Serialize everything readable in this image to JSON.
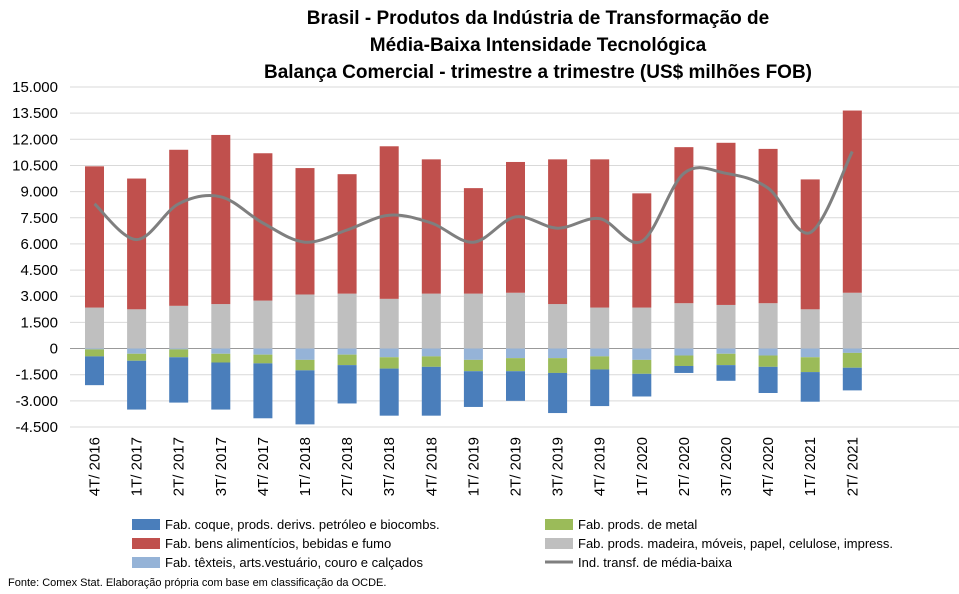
{
  "chart_data": {
    "type": "bar",
    "stacked": true,
    "title_lines": [
      "Brasil - Produtos da Indústria de Transformação de",
      "Média-Baixa Intensidade Tecnológica",
      "Balança Comercial - trimestre a trimestre (US$ milhões FOB)"
    ],
    "categories": [
      "4T/ 2016",
      "1T/ 2017",
      "2T/ 2017",
      "3T/ 2017",
      "4T/ 2017",
      "1T/ 2018",
      "2T/ 2018",
      "3T/ 2018",
      "4T/ 2018",
      "1T/ 2019",
      "2T/ 2019",
      "3T/ 2019",
      "4T/ 2019",
      "1T/ 2020",
      "2T/ 2020",
      "3T/ 2020",
      "4T/ 2020",
      "1T/ 2021",
      "2T/ 2021"
    ],
    "ylim": [
      -4500,
      15000
    ],
    "yticks": [
      15000,
      13500,
      12000,
      10500,
      9000,
      7500,
      6000,
      4500,
      3000,
      1500,
      0,
      -1500,
      -3000,
      -4500
    ],
    "ytick_labels": [
      "15.000",
      "13.500",
      "12.000",
      "10.500",
      "9.000",
      "7.500",
      "6.000",
      "4.500",
      "3.000",
      "1.500",
      "0",
      "-1.500",
      "-3.000",
      "-4.500"
    ],
    "grid": true,
    "legend_position": "bottom",
    "series": [
      {
        "name": "Fab. coque, prods. derivs. petróleo e biocombs.",
        "color": "#4a7ebb",
        "values": [
          -1650,
          -2800,
          -2600,
          -2700,
          -3150,
          -3100,
          -2200,
          -2700,
          -2800,
          -2050,
          -1700,
          -2300,
          -2100,
          -1300,
          -400,
          -900,
          -1500,
          -1700,
          -1300
        ]
      },
      {
        "name": "Fab. prods. de metal",
        "color": "#9bbb59",
        "values": [
          -400,
          -400,
          -450,
          -500,
          -500,
          -600,
          -600,
          -650,
          -600,
          -650,
          -750,
          -850,
          -750,
          -800,
          -600,
          -650,
          -650,
          -850,
          -850
        ]
      },
      {
        "name": "Fab. têxteis, arts.vestuário, couro e calçados",
        "color": "#95b3d7",
        "values": [
          -50,
          -300,
          -50,
          -300,
          -350,
          -650,
          -350,
          -500,
          -450,
          -650,
          -550,
          -550,
          -450,
          -650,
          -400,
          -300,
          -400,
          -500,
          -250
        ]
      },
      {
        "name": "Fab. prods. madeira, móveis, papel, celulose, impress.",
        "color": "#bfbfbf",
        "values": [
          2350,
          2250,
          2450,
          2550,
          2750,
          3100,
          3150,
          2850,
          3150,
          3150,
          3200,
          2550,
          2350,
          2350,
          2600,
          2500,
          2600,
          2250,
          3200
        ]
      },
      {
        "name": "Fab. bens alimentícios, bebidas e fumo",
        "color": "#c0504d",
        "values": [
          8100,
          7500,
          8950,
          9700,
          8450,
          7250,
          6850,
          8750,
          7700,
          6050,
          7500,
          8300,
          8500,
          6550,
          8950,
          9300,
          8850,
          7450,
          10450
        ]
      }
    ],
    "line_series": {
      "name": "Ind. transf. de média-baixa",
      "color": "#7f7f7f",
      "values": [
        8300,
        6250,
        8300,
        8700,
        7200,
        6100,
        6800,
        7650,
        7200,
        6100,
        7550,
        6900,
        7450,
        6150,
        10050,
        10050,
        9200,
        6650,
        11300
      ]
    },
    "source": "Fonte: Comex Stat. Elaboração própria com base em classificação da OCDE."
  }
}
